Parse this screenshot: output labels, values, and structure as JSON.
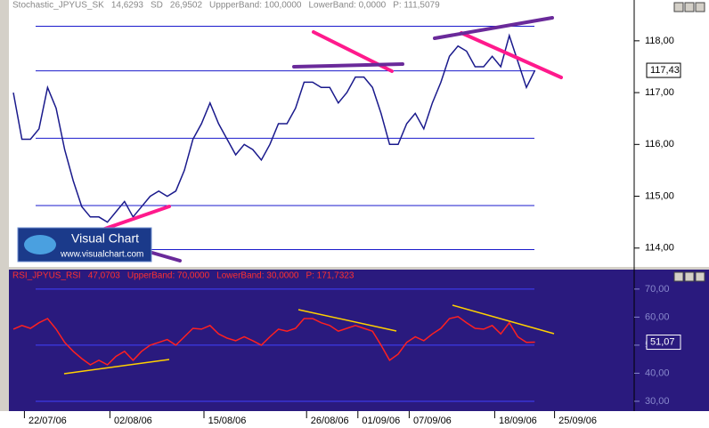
{
  "logo": {
    "title": "Visual Chart",
    "url": "www.visualchart.com"
  },
  "chart_data": [
    {
      "type": "line",
      "name": "price",
      "header": [
        "Stochastic_JPYUS_SK",
        "14,6293",
        "SD",
        "26,9502",
        "UppperBand: 100,0000",
        "LowerBand: 0,0000",
        "P: 111,5079"
      ],
      "color": "#1a1a8c",
      "values": [
        117.0,
        116.1,
        116.1,
        116.3,
        117.1,
        116.7,
        115.9,
        115.3,
        114.8,
        114.6,
        114.6,
        114.5,
        114.7,
        114.9,
        114.6,
        114.8,
        115.0,
        115.1,
        115.0,
        115.1,
        115.5,
        116.1,
        116.4,
        116.8,
        116.4,
        116.1,
        115.8,
        116.0,
        115.9,
        115.7,
        116.0,
        116.4,
        116.4,
        116.7,
        117.2,
        117.2,
        117.1,
        117.1,
        116.8,
        117.0,
        117.3,
        117.3,
        117.1,
        116.6,
        116.0,
        116.0,
        116.4,
        116.6,
        116.3,
        116.8,
        117.2,
        117.7,
        117.9,
        117.8,
        117.5,
        117.5,
        117.7,
        117.5,
        118.1,
        117.6,
        117.1,
        117.43,
        null,
        null,
        null,
        null,
        null,
        null,
        null,
        null,
        null,
        null
      ],
      "value_labels": [
        null,
        null,
        null,
        null,
        null,
        null,
        null,
        null,
        null,
        null,
        null,
        null,
        null,
        null,
        null,
        null,
        null,
        null,
        null,
        null,
        null,
        null,
        null,
        null,
        null,
        null,
        null,
        null,
        null,
        null,
        null,
        null,
        null,
        null,
        null,
        null,
        null,
        null,
        null,
        null,
        null,
        null,
        null,
        null,
        null,
        null,
        null,
        null,
        null,
        null,
        null,
        null,
        null,
        null,
        null,
        null,
        null,
        null,
        null,
        null,
        null,
        "117,43",
        null,
        null,
        null,
        null,
        null,
        null,
        null,
        null,
        null,
        null
      ],
      "levels": [
        118.28,
        117.42,
        116.12,
        114.82,
        113.97
      ],
      "ylim": [
        113.67,
        118.65
      ],
      "yticks": [
        {
          "value": 114,
          "label": "114,00"
        },
        {
          "value": 115,
          "label": "115,00"
        },
        {
          "value": 116,
          "label": "116,00"
        },
        {
          "value": 117,
          "label": "117,00"
        },
        {
          "value": 118,
          "label": "118,00"
        }
      ]
    },
    {
      "type": "line",
      "name": "rsi",
      "header": [
        "RSI_JPYUS_RSI",
        "47,0703",
        "UpperBand: 70,0000",
        "LowerBand: 30,0000",
        "P: 171,7323"
      ],
      "color": "#ff2020",
      "categories": [
        null,
        null,
        null,
        null,
        "22/07/06",
        null,
        null,
        null,
        null,
        null,
        null,
        null,
        null,
        null,
        "02/08/06",
        null,
        null,
        null,
        null,
        null,
        null,
        null,
        null,
        null,
        null,
        "15/08/06",
        null,
        null,
        null,
        null,
        null,
        null,
        null,
        null,
        null,
        null,
        null,
        "26/08/06",
        null,
        null,
        null,
        null,
        null,
        "01/09/06",
        null,
        null,
        null,
        null,
        null,
        "07/09/06",
        null,
        null,
        null,
        null,
        null,
        null,
        null,
        null,
        null,
        "18/09/06",
        null,
        null,
        null,
        null,
        null,
        null,
        "25/09/06",
        null,
        null,
        null,
        null,
        null
      ],
      "values": [
        55.7,
        57,
        56,
        58,
        59.5,
        55.7,
        51,
        47.8,
        45.2,
        43,
        44.6,
        43,
        46,
        47.8,
        44.6,
        47.8,
        50,
        51,
        52,
        50,
        53,
        56,
        55.7,
        57,
        54,
        52.5,
        51.6,
        53,
        51.6,
        50,
        53,
        55.7,
        55,
        56,
        59.5,
        59.5,
        58,
        57,
        55,
        56,
        57,
        56,
        55,
        50,
        44.6,
        46.8,
        51,
        53,
        51.6,
        54,
        56,
        59.5,
        60.2,
        58,
        56,
        55.7,
        57,
        54,
        58,
        53,
        51,
        51.07,
        null,
        null,
        null,
        null,
        null,
        null,
        null,
        null,
        null,
        null
      ],
      "value_labels": [
        null,
        null,
        null,
        null,
        null,
        null,
        null,
        null,
        null,
        null,
        null,
        null,
        null,
        null,
        null,
        null,
        null,
        null,
        null,
        null,
        null,
        null,
        null,
        null,
        null,
        null,
        null,
        null,
        null,
        null,
        null,
        null,
        null,
        null,
        null,
        null,
        null,
        null,
        null,
        null,
        null,
        null,
        null,
        null,
        null,
        null,
        null,
        null,
        null,
        null,
        null,
        null,
        null,
        null,
        null,
        null,
        null,
        null,
        null,
        null,
        null,
        "51,07",
        null,
        null,
        null,
        null,
        null,
        null,
        null,
        null,
        null,
        null
      ],
      "levels": [
        70,
        50,
        30
      ],
      "ylim": [
        26.5,
        76.3
      ],
      "yticks": [
        {
          "value": 30,
          "label": "30,00"
        },
        {
          "value": 40,
          "label": "40,00"
        },
        {
          "value": 50,
          "label": "50,00"
        },
        {
          "value": 60,
          "label": "60,00"
        },
        {
          "value": 70,
          "label": "70,00"
        }
      ]
    }
  ]
}
